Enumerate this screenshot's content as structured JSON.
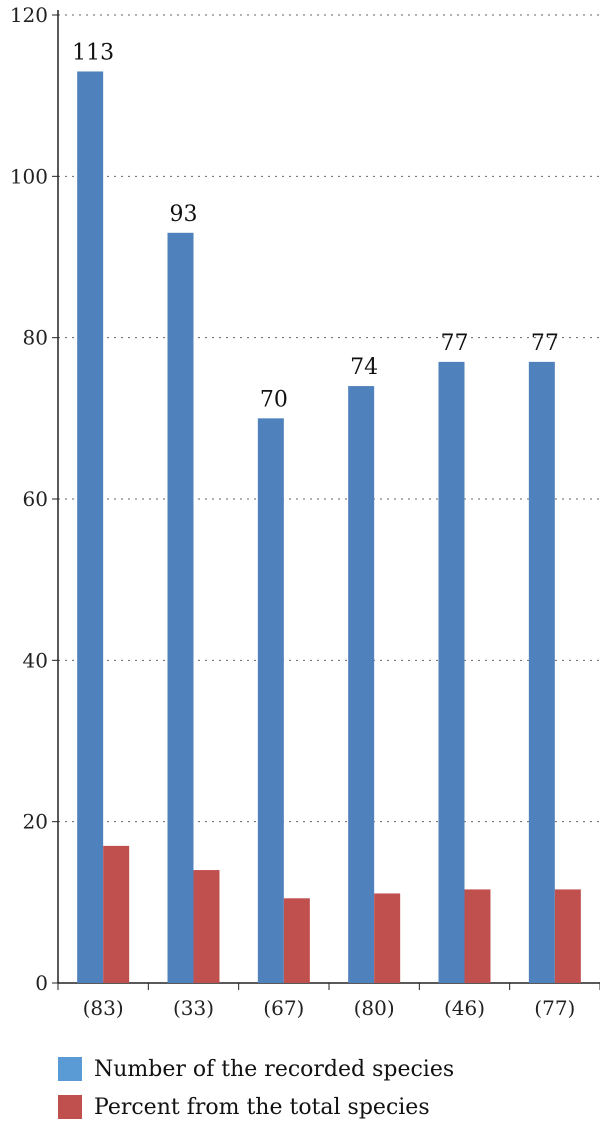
{
  "chart_data": {
    "type": "bar",
    "categories": [
      "(83)",
      "(33)",
      "(67)",
      "(80)",
      "(46)",
      "(77)"
    ],
    "series": [
      {
        "name": "Number of the recorded species",
        "color": "#4f81bd",
        "values": [
          113,
          93,
          70,
          74,
          77,
          77
        ],
        "labels": [
          "113",
          "93",
          "70",
          "74",
          "77",
          "77"
        ]
      },
      {
        "name": "Percent from the total species",
        "color": "#c0504d",
        "values": [
          17,
          14,
          10.5,
          11.1,
          11.6,
          11.6
        ]
      }
    ],
    "ylim": [
      0,
      120
    ],
    "yticks": [
      0,
      20,
      40,
      60,
      80,
      100,
      120
    ],
    "grid": true,
    "legend_position": "bottom"
  },
  "legend": {
    "items": [
      {
        "label": "Number of the recorded species",
        "color": "#5b9bd5"
      },
      {
        "label": "Percent from the total species",
        "color": "#c0504d"
      }
    ]
  }
}
